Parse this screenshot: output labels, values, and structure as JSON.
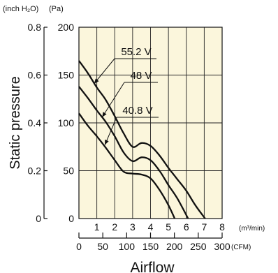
{
  "chart_data": {
    "type": "line",
    "unit_labels": {
      "left_outer": "(inch H₂O)",
      "left_inner": "(Pa)"
    },
    "y_axis_pa": {
      "ylim": [
        0,
        200
      ],
      "ticks": [
        "0",
        "50",
        "100",
        "150",
        "200"
      ]
    },
    "y_axis_inch": {
      "ylim": [
        0,
        0.8
      ],
      "ticks": [
        "0",
        "0.2",
        "0.4",
        "0.6",
        "0.8"
      ]
    },
    "ylabel": "Static pressure",
    "x_axis_m3": {
      "xlim": [
        0,
        8
      ],
      "ticks": [
        "1",
        "2",
        "3",
        "4",
        "5",
        "6",
        "7",
        "8"
      ],
      "unit": "(m³/min)"
    },
    "x_axis_cfm": {
      "xlim": [
        0,
        300
      ],
      "ticks": [
        "0",
        "50",
        "100",
        "150",
        "200",
        "250",
        "300"
      ],
      "unit": "(CFM)"
    },
    "xlabel": "Airflow",
    "plot_background": "#fbf6dc",
    "grid": true,
    "series": [
      {
        "name": "55.2 V",
        "x": [
          0,
          0.5,
          1,
          1.5,
          2,
          2.5,
          3,
          3.5,
          4,
          4.5,
          5,
          5.5,
          6,
          6.5,
          7.05
        ],
        "y": [
          165,
          152,
          137,
          124,
          107,
          89,
          75,
          79,
          76,
          66,
          53,
          41,
          29,
          14,
          0
        ]
      },
      {
        "name": "48 V",
        "x": [
          0,
          0.5,
          1,
          1.5,
          2,
          2.5,
          3,
          3.5,
          4,
          4.5,
          5,
          5.5,
          6.1
        ],
        "y": [
          138,
          126,
          113,
          101,
          86,
          69,
          60,
          64,
          61,
          50,
          35,
          21,
          0
        ]
      },
      {
        "name": "40.8 V",
        "x": [
          0,
          0.5,
          1,
          1.5,
          2,
          2.5,
          3,
          3.5,
          4,
          4.5,
          5,
          5.35
        ],
        "y": [
          110,
          97,
          86,
          74,
          61,
          49,
          47,
          46,
          42,
          30,
          14,
          0
        ]
      }
    ]
  }
}
